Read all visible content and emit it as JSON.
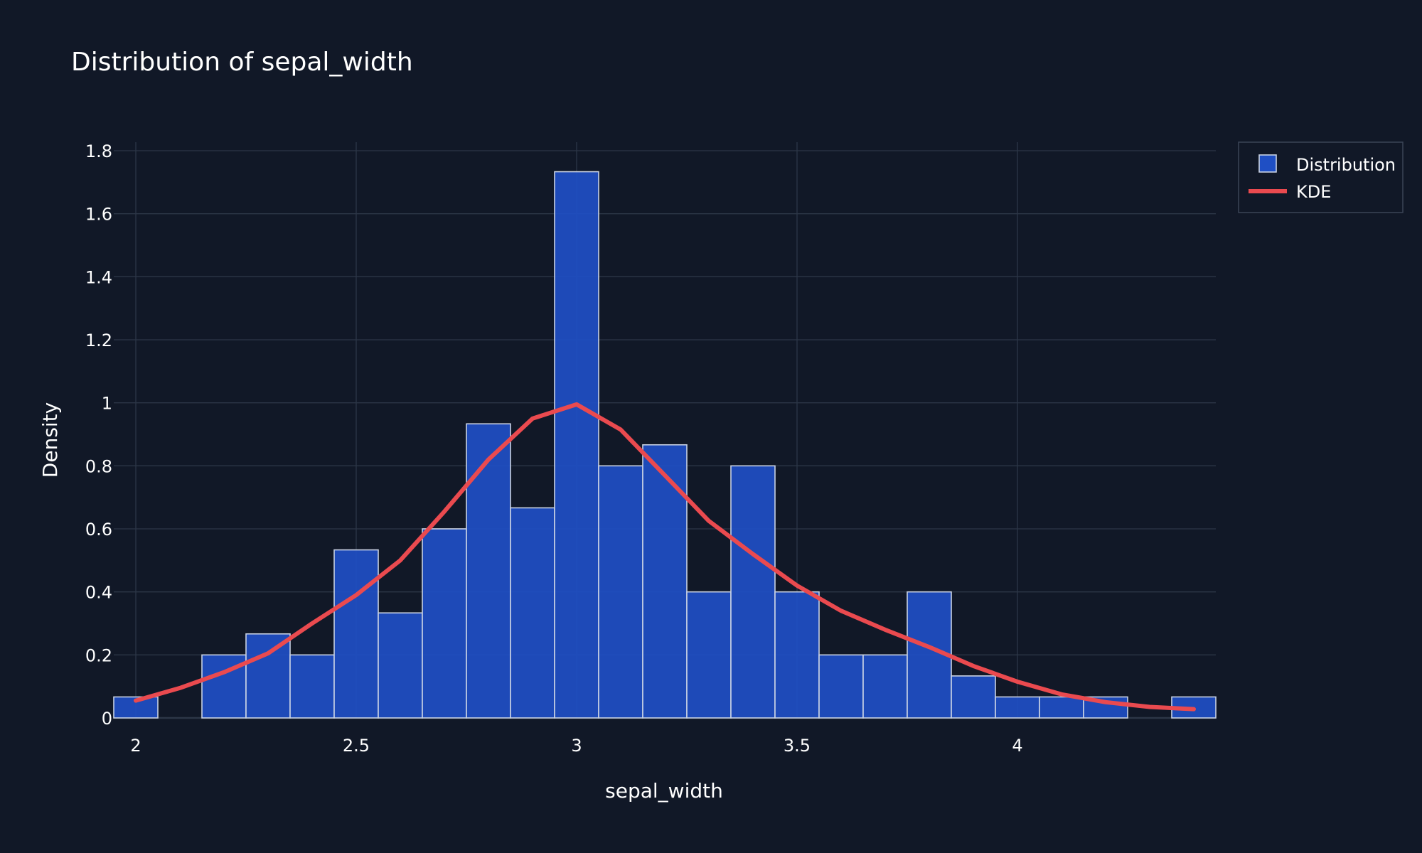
{
  "chart_data": {
    "type": "bar",
    "title": "Distribution of sepal_width",
    "xlabel": "sepal_width",
    "ylabel": "Density",
    "xlim": [
      1.95,
      4.45
    ],
    "ylim": [
      0,
      1.8
    ],
    "x_ticks": [
      2,
      2.5,
      3,
      3.5,
      4
    ],
    "x_tick_labels": [
      "2",
      "2.5",
      "3",
      "3.5",
      "4"
    ],
    "y_ticks": [
      0,
      0.2,
      0.4,
      0.6,
      0.8,
      1,
      1.2,
      1.4,
      1.6,
      1.8
    ],
    "y_tick_labels": [
      "0",
      "0.2",
      "0.4",
      "0.6",
      "0.8",
      "1",
      "1.2",
      "1.4",
      "1.6",
      "1.8"
    ],
    "grid": true,
    "legend_position": "top-right outside",
    "bin_width": 0.1,
    "series": [
      {
        "name": "Distribution",
        "kind": "histogram",
        "color": "#1f4fc4",
        "bins": [
          {
            "x": 2.0,
            "value": 0.0667
          },
          {
            "x": 2.1,
            "value": 0
          },
          {
            "x": 2.2,
            "value": 0.2
          },
          {
            "x": 2.3,
            "value": 0.2667
          },
          {
            "x": 2.4,
            "value": 0.2
          },
          {
            "x": 2.5,
            "value": 0.5333
          },
          {
            "x": 2.6,
            "value": 0.3333
          },
          {
            "x": 2.7,
            "value": 0.6
          },
          {
            "x": 2.8,
            "value": 0.9333
          },
          {
            "x": 2.9,
            "value": 0.6667
          },
          {
            "x": 3.0,
            "value": 1.7333
          },
          {
            "x": 3.1,
            "value": 0.8
          },
          {
            "x": 3.2,
            "value": 0.8667
          },
          {
            "x": 3.3,
            "value": 0.4
          },
          {
            "x": 3.4,
            "value": 0.8
          },
          {
            "x": 3.5,
            "value": 0.4
          },
          {
            "x": 3.6,
            "value": 0.2
          },
          {
            "x": 3.7,
            "value": 0.2
          },
          {
            "x": 3.8,
            "value": 0.4
          },
          {
            "x": 3.9,
            "value": 0.1333
          },
          {
            "x": 4.0,
            "value": 0.0667
          },
          {
            "x": 4.1,
            "value": 0.0667
          },
          {
            "x": 4.2,
            "value": 0.0667
          },
          {
            "x": 4.3,
            "value": 0
          },
          {
            "x": 4.4,
            "value": 0.0667
          }
        ]
      },
      {
        "name": "KDE",
        "kind": "line",
        "color": "#ea4a4f",
        "x": [
          2.0,
          2.1,
          2.2,
          2.3,
          2.4,
          2.5,
          2.6,
          2.7,
          2.8,
          2.9,
          3.0,
          3.1,
          3.2,
          3.3,
          3.4,
          3.5,
          3.6,
          3.7,
          3.8,
          3.9,
          4.0,
          4.1,
          4.2,
          4.3,
          4.4
        ],
        "y": [
          0.055,
          0.095,
          0.145,
          0.205,
          0.3,
          0.39,
          0.5,
          0.655,
          0.82,
          0.95,
          0.995,
          0.915,
          0.77,
          0.625,
          0.52,
          0.42,
          0.34,
          0.28,
          0.225,
          0.165,
          0.115,
          0.075,
          0.05,
          0.035,
          0.028
        ]
      }
    ]
  }
}
